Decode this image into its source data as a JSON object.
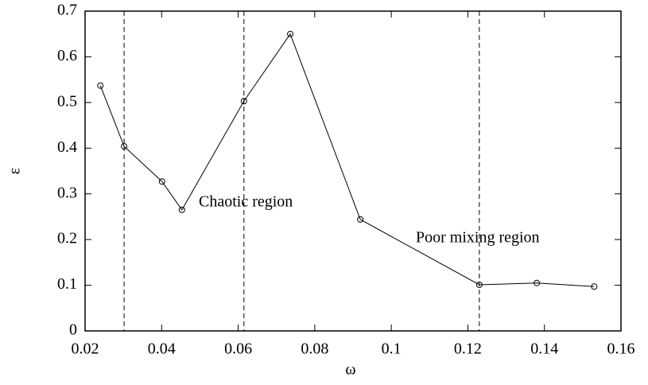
{
  "chart_data": {
    "type": "line",
    "x_label": "ω",
    "y_label": "ε",
    "x": [
      0.024,
      0.0302,
      0.0401,
      0.0453,
      0.0615,
      0.0736,
      0.0919,
      0.123,
      0.138,
      0.153
    ],
    "series": [
      {
        "color": "#000000",
        "values": [
          0.537,
          0.404,
          0.327,
          0.265,
          0.503,
          0.65,
          0.244,
          0.101,
          0.105,
          0.097
        ]
      }
    ],
    "vlines": [
      0.0302,
      0.0615,
      0.123
    ],
    "annotations": [
      "Chaotic region",
      "Poor mixing region"
    ],
    "xlim": [
      0.02,
      0.16
    ],
    "xticks": [
      0.02,
      0.04,
      0.06,
      0.08,
      0.1,
      0.12,
      0.14,
      0.16
    ],
    "ylim": [
      0,
      0.7
    ],
    "yticks": [
      0,
      0.1,
      0.2,
      0.3,
      0.4,
      0.5,
      0.6,
      0.7
    ],
    "grid": false,
    "marker": "open-circle"
  }
}
